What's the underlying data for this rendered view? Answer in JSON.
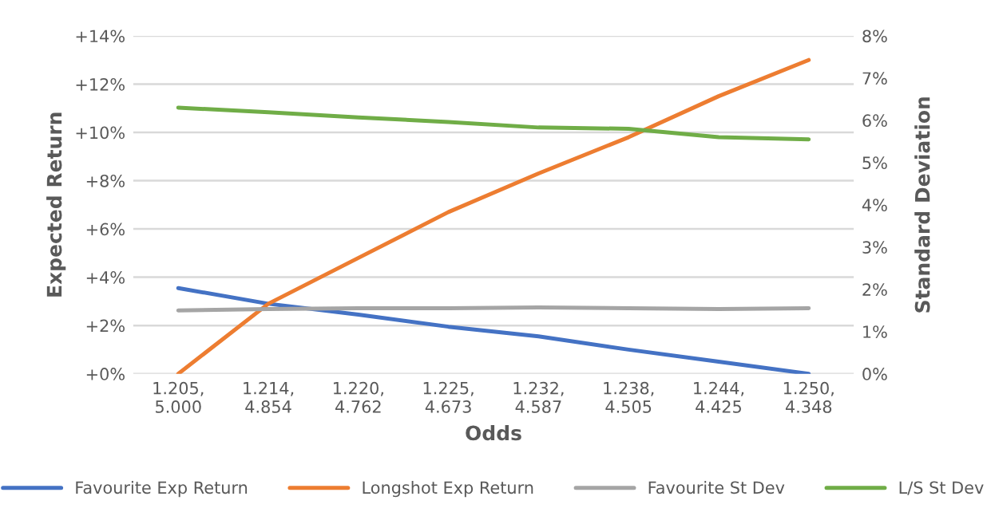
{
  "chart_data": {
    "type": "line",
    "xlabel": "Odds",
    "ylabel": "Expected Return",
    "y2label": "Standard Deviation",
    "categories": [
      "1.205,\n5.000",
      "1.214,\n4.854",
      "1.220,\n4.762",
      "1.225,\n4.673",
      "1.232,\n4.587",
      "1.238,\n4.505",
      "1.244,\n4.425",
      "1.250,\n4.348"
    ],
    "series": [
      {
        "name": "Favourite Exp Return",
        "color": "#4472c4",
        "values": [
          3.55,
          2.9,
          2.45,
          1.95,
          1.55,
          1.0,
          0.5,
          0.0
        ]
      },
      {
        "name": "Longshot Exp Return",
        "color": "#ed7d31",
        "values": [
          0.0,
          2.9,
          4.8,
          6.7,
          8.3,
          9.8,
          11.5,
          13.0
        ]
      },
      {
        "name": "Favourite St Dev",
        "color": "#a5a5a5",
        "axis": "y2",
        "values": [
          1.5,
          1.53,
          1.55,
          1.55,
          1.57,
          1.55,
          1.53,
          1.55
        ]
      },
      {
        "name": "L/S St Dev",
        "color": "#70ad47",
        "axis": "y2",
        "values": [
          6.3,
          6.19,
          6.07,
          5.96,
          5.83,
          5.8,
          5.6,
          5.55
        ]
      }
    ],
    "ylim": [
      0,
      14
    ],
    "yticks": [
      {
        "value": 0,
        "label": "+0%"
      },
      {
        "value": 2,
        "label": "+2%"
      },
      {
        "value": 4,
        "label": "+4%"
      },
      {
        "value": 6,
        "label": "+6%"
      },
      {
        "value": 8,
        "label": "+8%"
      },
      {
        "value": 10,
        "label": "+10%"
      },
      {
        "value": 12,
        "label": "+12%"
      },
      {
        "value": 14,
        "label": "+14%"
      }
    ],
    "y2lim": [
      0,
      8
    ],
    "y2ticks": [
      {
        "value": 0,
        "label": "0%"
      },
      {
        "value": 1,
        "label": "1%"
      },
      {
        "value": 2,
        "label": "2%"
      },
      {
        "value": 3,
        "label": "3%"
      },
      {
        "value": 4,
        "label": "4%"
      },
      {
        "value": 5,
        "label": "5%"
      },
      {
        "value": 6,
        "label": "6%"
      },
      {
        "value": 7,
        "label": "7%"
      },
      {
        "value": 8,
        "label": "8%"
      }
    ],
    "grid": "y",
    "legend": "bottom",
    "marker": "none",
    "line_style": "solid"
  }
}
